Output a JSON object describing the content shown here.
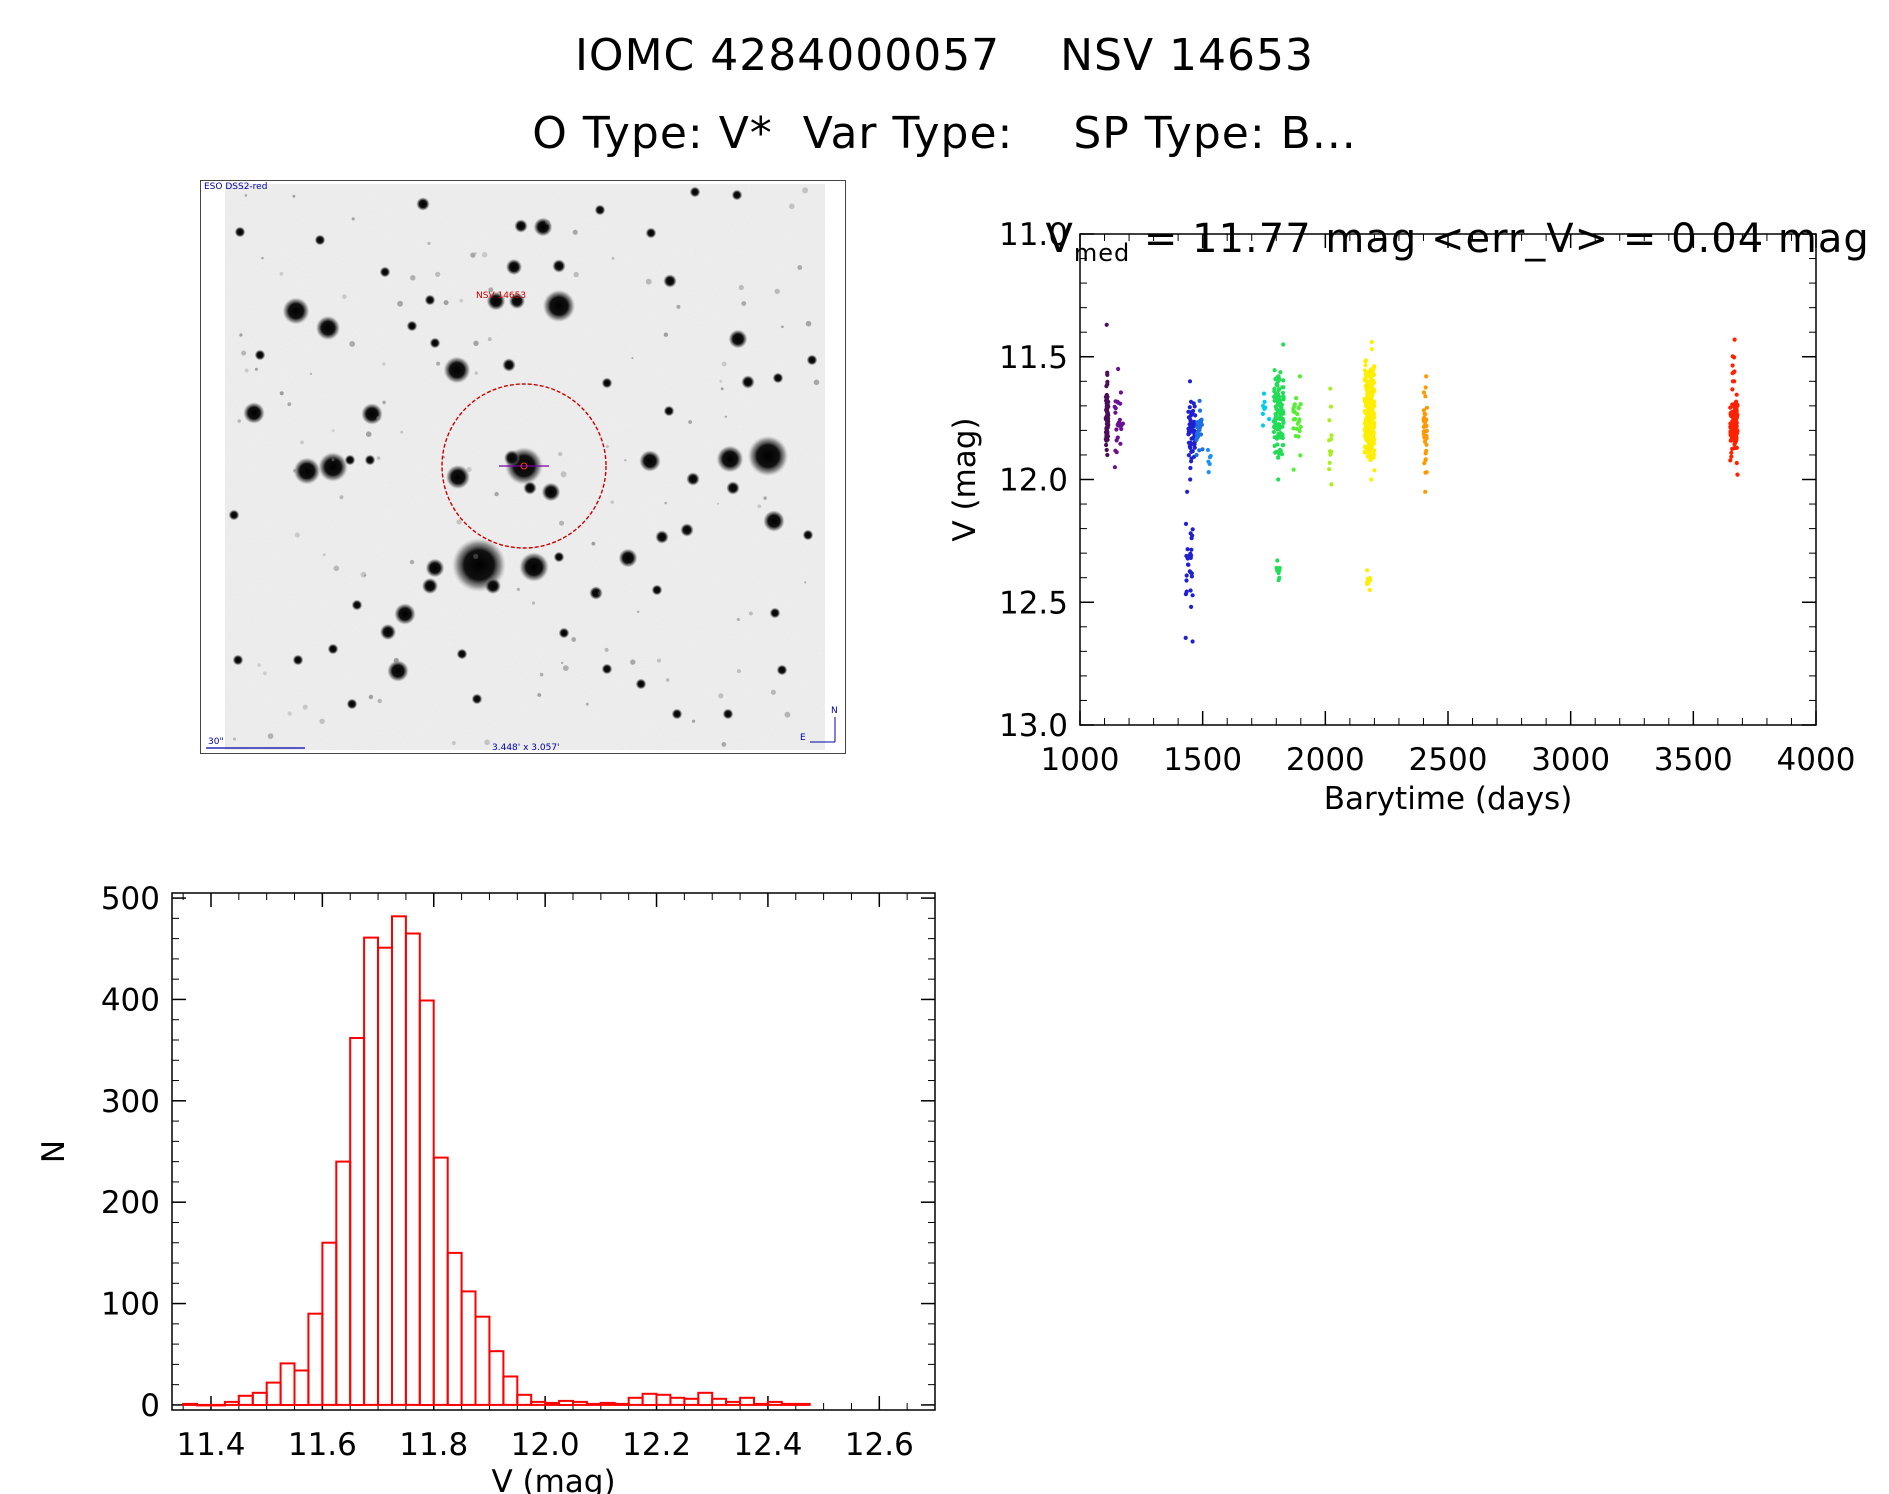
{
  "header": {
    "title_line1": "IOMC 4284000057    NSV 14653",
    "title_line2": "O Type: V*  Var Type:    SP Type: B..."
  },
  "finding_chart": {
    "survey_label": "ESO DSS2-red",
    "target_label": "NSV 14653",
    "scale_label": "30\"",
    "size_label": "3.448' x 3.057'",
    "north_label": "N",
    "east_label": "E"
  },
  "colors": {
    "histogram": "#ff0000",
    "circle": "#cc0000",
    "dss_text": "#0000aa",
    "target_text": "#cc0000"
  },
  "lightcurve_title": {
    "v_letter": "V",
    "subscript": "med",
    "rest": " = 11.77 mag <err_V> = 0.04 mag"
  },
  "chart_data": [
    {
      "type": "scatter",
      "xlabel": "Barytime (days)",
      "ylabel": "V (mag)",
      "xlim": [
        1000,
        4000
      ],
      "ylim": [
        13.0,
        11.0
      ],
      "y_inverted": true,
      "xticks": [
        1000,
        1500,
        2000,
        2500,
        3000,
        3500,
        4000
      ],
      "yticks": [
        "11.0",
        "11.5",
        "12.0",
        "12.5",
        "13.0"
      ],
      "series": [
        {
          "color": "#4b0f5a",
          "x_range": [
            1105,
            1115
          ],
          "y_range": [
            11.62,
            11.88
          ],
          "n": 70
        },
        {
          "color": "#4b0f5a",
          "x_range": [
            1108,
            1112
          ],
          "y_range": [
            11.37,
            11.9
          ],
          "n": 8
        },
        {
          "color": "#6a1090",
          "x_range": [
            1140,
            1175
          ],
          "y_range": [
            11.55,
            11.95
          ],
          "n": 25
        },
        {
          "color": "#2020d0",
          "x_range": [
            1440,
            1470
          ],
          "y_range": [
            11.6,
            12.0
          ],
          "n": 60
        },
        {
          "color": "#2020d0",
          "x_range": [
            1430,
            1460
          ],
          "y_range": [
            12.05,
            12.66
          ],
          "n": 30
        },
        {
          "color": "#1e70e0",
          "x_range": [
            1475,
            1500
          ],
          "y_range": [
            11.68,
            11.9
          ],
          "n": 30
        },
        {
          "color": "#1e90ff",
          "x_range": [
            1520,
            1535
          ],
          "y_range": [
            11.88,
            11.97
          ],
          "n": 6
        },
        {
          "color": "#00ccee",
          "x_range": [
            1745,
            1775
          ],
          "y_range": [
            11.65,
            11.78
          ],
          "n": 8
        },
        {
          "color": "#22dd55",
          "x_range": [
            1790,
            1830
          ],
          "y_range": [
            11.45,
            12.0
          ],
          "n": 120
        },
        {
          "color": "#22dd55",
          "x_range": [
            1800,
            1815
          ],
          "y_range": [
            12.33,
            12.41
          ],
          "n": 8
        },
        {
          "color": "#55ee33",
          "x_range": [
            1870,
            1900
          ],
          "y_range": [
            11.58,
            11.96
          ],
          "n": 25
        },
        {
          "color": "#aaee22",
          "x_range": [
            2015,
            2025
          ],
          "y_range": [
            11.63,
            12.02
          ],
          "n": 12
        },
        {
          "color": "#ffee00",
          "x_range": [
            2160,
            2200
          ],
          "y_range": [
            11.44,
            12.0
          ],
          "n": 260
        },
        {
          "color": "#ffee00",
          "x_range": [
            2170,
            2185
          ],
          "y_range": [
            12.37,
            12.45
          ],
          "n": 8
        },
        {
          "color": "#ff9900",
          "x_range": [
            2400,
            2415
          ],
          "y_range": [
            11.58,
            12.05
          ],
          "n": 35
        },
        {
          "color": "#ff2200",
          "x_range": [
            3650,
            3680
          ],
          "y_range": [
            11.6,
            11.98
          ],
          "n": 110
        },
        {
          "color": "#ff2200",
          "x_range": [
            3660,
            3670
          ],
          "y_range": [
            11.43,
            11.6
          ],
          "n": 8
        }
      ]
    },
    {
      "type": "bar",
      "subtype": "histogram",
      "xlabel": "V (mag)",
      "ylabel": "N",
      "xlim": [
        11.33,
        12.7
      ],
      "ylim": [
        -5,
        505
      ],
      "xticks": [
        "11.4",
        "11.6",
        "11.8",
        "12.0",
        "12.2",
        "12.4",
        "12.6"
      ],
      "yticks": [
        "0",
        "100",
        "200",
        "300",
        "400",
        "500"
      ],
      "bin_width": 0.025,
      "bin_start": 11.35,
      "values": [
        1,
        0,
        0,
        3,
        9,
        12,
        22,
        41,
        34,
        90,
        160,
        240,
        362,
        461,
        451,
        482,
        465,
        399,
        244,
        150,
        112,
        87,
        53,
        28,
        10,
        3,
        2,
        4,
        3,
        1,
        2,
        1,
        7,
        11,
        10,
        7,
        6,
        12,
        6,
        3,
        7,
        1,
        3,
        1,
        1
      ]
    }
  ]
}
